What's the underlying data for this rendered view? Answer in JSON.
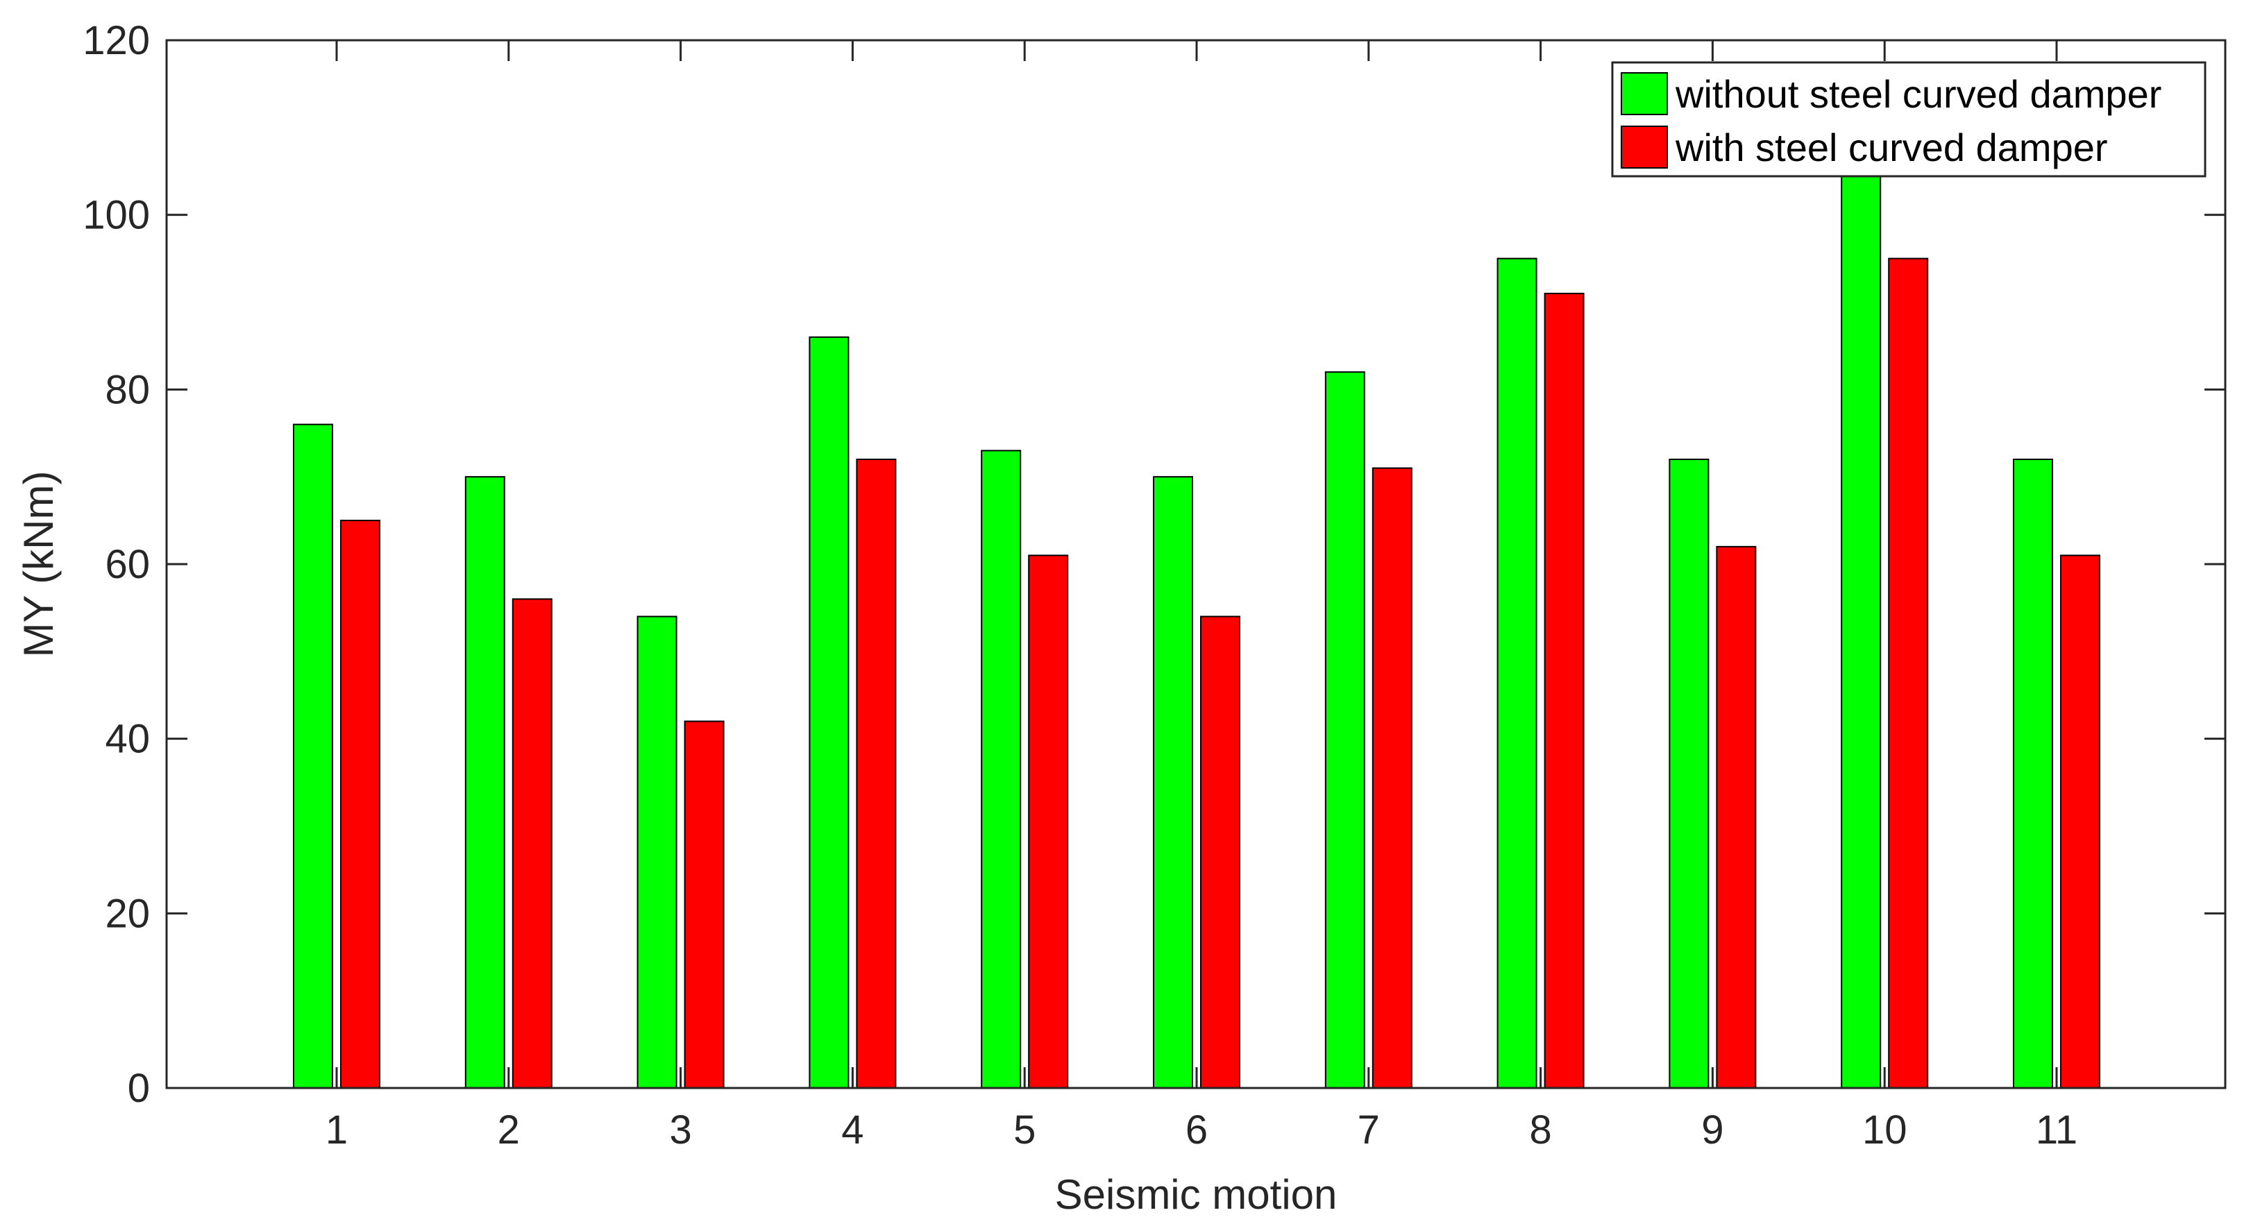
{
  "chart_data": {
    "type": "bar",
    "title": "",
    "xlabel": "Seismic motion",
    "ylabel": "MY (kNm)",
    "categories": [
      "1",
      "2",
      "3",
      "4",
      "5",
      "6",
      "7",
      "8",
      "9",
      "10",
      "11"
    ],
    "series": [
      {
        "name": "without steel curved damper",
        "color": "#00ff00",
        "values": [
          76,
          70,
          54,
          86,
          73,
          70,
          82,
          95,
          72,
          105,
          72
        ]
      },
      {
        "name": "with steel curved damper",
        "color": "#ff0000",
        "values": [
          65,
          56,
          42,
          72,
          61,
          54,
          71,
          91,
          62,
          95,
          61
        ]
      }
    ],
    "ylim": [
      0,
      120
    ],
    "yticks": [
      "0",
      "20",
      "40",
      "60",
      "80",
      "100",
      "120"
    ],
    "grid": false,
    "legend_position": "top-right"
  }
}
